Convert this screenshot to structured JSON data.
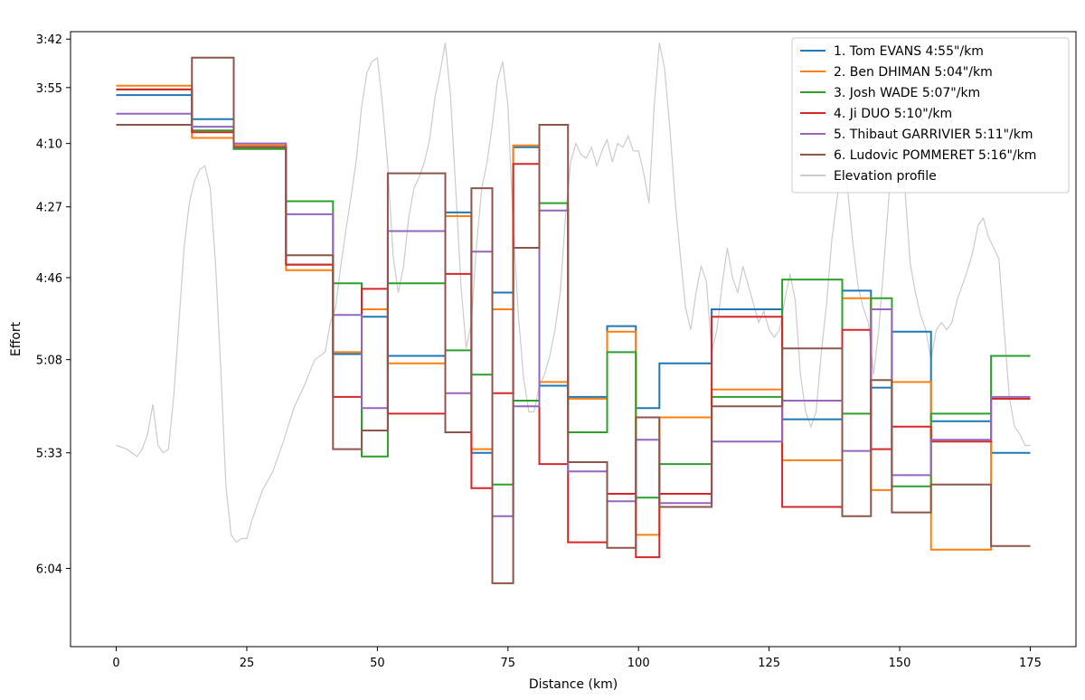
{
  "chart_data": {
    "type": "line",
    "xlabel": "Distance (km)",
    "ylabel": "Effort",
    "xlim": [
      -8.75,
      183.75
    ],
    "ylim_seconds": [
      385,
      220
    ],
    "y_inverted": true,
    "xticks": [
      0,
      25,
      50,
      75,
      100,
      125,
      150,
      175
    ],
    "yticks": [
      {
        "label": "3:42",
        "value": 222
      },
      {
        "label": "3:55",
        "value": 235
      },
      {
        "label": "4:10",
        "value": 250
      },
      {
        "label": "4:27",
        "value": 267
      },
      {
        "label": "4:46",
        "value": 286
      },
      {
        "label": "5:08",
        "value": 308
      },
      {
        "label": "5:33",
        "value": 333
      },
      {
        "label": "6:04",
        "value": 364
      }
    ],
    "legend_position": "top-right",
    "segment_boundaries_km": [
      0,
      14.5,
      22.5,
      32.5,
      41.5,
      47,
      52,
      63,
      68,
      72,
      76,
      81,
      86.5,
      94,
      99.5,
      104,
      114,
      127.5,
      139,
      144.5,
      148.5,
      156,
      167.5,
      175
    ],
    "series": [
      {
        "name": "1. Tom EVANS 4:55\"/km",
        "color": "#1f77b4",
        "values": [
          237.0,
          243.5,
          251.0,
          282.5,
          306.5,
          296.5,
          307.0,
          268.5,
          333.0,
          290.0,
          251.0,
          315.0,
          318.0,
          299.0,
          321.0,
          309.0,
          294.5,
          324.0,
          289.5,
          315.5,
          300.5,
          324.5,
          333.0
        ]
      },
      {
        "name": "2. Ben DHIMAN 5:04\"/km",
        "color": "#ff7f0e",
        "values": [
          234.5,
          248.5,
          250.5,
          284.0,
          306.0,
          294.5,
          309.0,
          269.5,
          332.0,
          294.5,
          250.5,
          314.0,
          318.5,
          300.5,
          355.0,
          323.5,
          316.0,
          335.0,
          291.5,
          343.0,
          314.0,
          359.0,
          318.5
        ]
      },
      {
        "name": "3. Josh WADE 5:07\"/km",
        "color": "#2ca02c",
        "values": [
          235.5,
          246.5,
          251.5,
          265.5,
          287.5,
          334.0,
          287.5,
          305.5,
          312.0,
          341.5,
          319.0,
          266.0,
          327.5,
          306.0,
          345.0,
          336.0,
          318.0,
          286.5,
          322.5,
          291.5,
          342.0,
          322.5,
          307.0
        ]
      },
      {
        "name": "4. Ji DUO 5:10\"/km",
        "color": "#d62728",
        "values": [
          235.5,
          247.0,
          251.0,
          282.5,
          318.0,
          289.0,
          322.5,
          285.0,
          342.5,
          317.0,
          255.5,
          336.0,
          357.0,
          344.0,
          361.0,
          344.0,
          296.5,
          347.5,
          300.0,
          332.0,
          326.0,
          330.0,
          318.5
        ]
      },
      {
        "name": "5. Thibaut GARRIVIER 5:11\"/km",
        "color": "#9467bd",
        "values": [
          242.0,
          245.5,
          250.0,
          269.0,
          296.0,
          321.0,
          273.5,
          317.0,
          279.0,
          350.0,
          320.5,
          268.0,
          338.0,
          346.0,
          329.5,
          346.5,
          330.0,
          319.0,
          332.5,
          294.5,
          339.0,
          329.5,
          318.0
        ]
      },
      {
        "name": "6. Ludovic POMMERET 5:16\"/km",
        "color": "#8c564b",
        "values": [
          245.0,
          227.0,
          251.0,
          280.0,
          332.0,
          327.0,
          258.0,
          327.5,
          262.0,
          368.0,
          278.0,
          245.0,
          335.5,
          358.5,
          323.5,
          347.5,
          320.5,
          305.0,
          350.0,
          313.5,
          349.0,
          341.5,
          358.0
        ]
      }
    ],
    "elevation_series": {
      "name": "Elevation profile",
      "color": "#cccccc",
      "points": [
        [
          0,
          331
        ],
        [
          2,
          332
        ],
        [
          4,
          334
        ],
        [
          5,
          332
        ],
        [
          6,
          328
        ],
        [
          7,
          320
        ],
        [
          8,
          331
        ],
        [
          9,
          333
        ],
        [
          10,
          332
        ],
        [
          11,
          318
        ],
        [
          12,
          298
        ],
        [
          13,
          278
        ],
        [
          14,
          266
        ],
        [
          15,
          260
        ],
        [
          16,
          257
        ],
        [
          17,
          256
        ],
        [
          18,
          262
        ],
        [
          19,
          282
        ],
        [
          20,
          310
        ],
        [
          21,
          342
        ],
        [
          22,
          355
        ],
        [
          23,
          357
        ],
        [
          24,
          356
        ],
        [
          25,
          356
        ],
        [
          26,
          351
        ],
        [
          28,
          343
        ],
        [
          30,
          338
        ],
        [
          32,
          330
        ],
        [
          34,
          321
        ],
        [
          36,
          315
        ],
        [
          38,
          308
        ],
        [
          40,
          306
        ],
        [
          41,
          298
        ],
        [
          42,
          294
        ],
        [
          43,
          283
        ],
        [
          44,
          273
        ],
        [
          45,
          264
        ],
        [
          46,
          254
        ],
        [
          47,
          240
        ],
        [
          48,
          231
        ],
        [
          49,
          228
        ],
        [
          50,
          227
        ],
        [
          51,
          240
        ],
        [
          52,
          256
        ],
        [
          53,
          280
        ],
        [
          54,
          290
        ],
        [
          55,
          283
        ],
        [
          56,
          270
        ],
        [
          57,
          262
        ],
        [
          58,
          259
        ],
        [
          59,
          255
        ],
        [
          60,
          249
        ],
        [
          61,
          238
        ],
        [
          62,
          231
        ],
        [
          63,
          223
        ],
        [
          64,
          237
        ],
        [
          65,
          262
        ],
        [
          66,
          288
        ],
        [
          67,
          305
        ],
        [
          68,
          298
        ],
        [
          69,
          277
        ],
        [
          70,
          262
        ],
        [
          71,
          255
        ],
        [
          72,
          245
        ],
        [
          73,
          233
        ],
        [
          74,
          228
        ],
        [
          75,
          240
        ],
        [
          76,
          272
        ],
        [
          77,
          296
        ],
        [
          78,
          313
        ],
        [
          79,
          322
        ],
        [
          80,
          322
        ],
        [
          81,
          315
        ],
        [
          82,
          312
        ],
        [
          83,
          307
        ],
        [
          84,
          300
        ],
        [
          85,
          290
        ],
        [
          86,
          270
        ],
        [
          87,
          255
        ],
        [
          88,
          250
        ],
        [
          89,
          253
        ],
        [
          90,
          254
        ],
        [
          91,
          251
        ],
        [
          92,
          256
        ],
        [
          93,
          252
        ],
        [
          94,
          249
        ],
        [
          95,
          255
        ],
        [
          96,
          250
        ],
        [
          97,
          251
        ],
        [
          98,
          248
        ],
        [
          99,
          252
        ],
        [
          100,
          252
        ],
        [
          101,
          258
        ],
        [
          102,
          266
        ],
        [
          103,
          240
        ],
        [
          104,
          223
        ],
        [
          105,
          230
        ],
        [
          106,
          246
        ],
        [
          107,
          265
        ],
        [
          108,
          280
        ],
        [
          109,
          294
        ],
        [
          110,
          300
        ],
        [
          111,
          290
        ],
        [
          112,
          283
        ],
        [
          113,
          287
        ],
        [
          114,
          306
        ],
        [
          115,
          300
        ],
        [
          116,
          288
        ],
        [
          117,
          278
        ],
        [
          118,
          286
        ],
        [
          119,
          290
        ],
        [
          120,
          283
        ],
        [
          121,
          288
        ],
        [
          122,
          293
        ],
        [
          123,
          298
        ],
        [
          124,
          295
        ],
        [
          125,
          300
        ],
        [
          126,
          302
        ],
        [
          127,
          300
        ],
        [
          128,
          292
        ],
        [
          129,
          285
        ],
        [
          130,
          292
        ],
        [
          131,
          312
        ],
        [
          132,
          322
        ],
        [
          133,
          326
        ],
        [
          134,
          322
        ],
        [
          135,
          306
        ],
        [
          136,
          293
        ],
        [
          137,
          276
        ],
        [
          138,
          265
        ],
        [
          139,
          256
        ],
        [
          140,
          262
        ],
        [
          141,
          276
        ],
        [
          142,
          288
        ],
        [
          143,
          294
        ],
        [
          144,
          298
        ],
        [
          145,
          312
        ],
        [
          146,
          300
        ],
        [
          147,
          282
        ],
        [
          148,
          263
        ],
        [
          149,
          254
        ],
        [
          150,
          250
        ],
        [
          151,
          262
        ],
        [
          152,
          282
        ],
        [
          153,
          290
        ],
        [
          154,
          296
        ],
        [
          155,
          300
        ],
        [
          156,
          308
        ],
        [
          157,
          300
        ],
        [
          158,
          298
        ],
        [
          159,
          300
        ],
        [
          160,
          298
        ],
        [
          161,
          292
        ],
        [
          162,
          288
        ],
        [
          163,
          284
        ],
        [
          164,
          279
        ],
        [
          165,
          272
        ],
        [
          166,
          270
        ],
        [
          167,
          275
        ],
        [
          168,
          278
        ],
        [
          169,
          281
        ],
        [
          170,
          300
        ],
        [
          171,
          318
        ],
        [
          172,
          326
        ],
        [
          173,
          328
        ],
        [
          174,
          331
        ],
        [
          175,
          331
        ]
      ]
    }
  }
}
